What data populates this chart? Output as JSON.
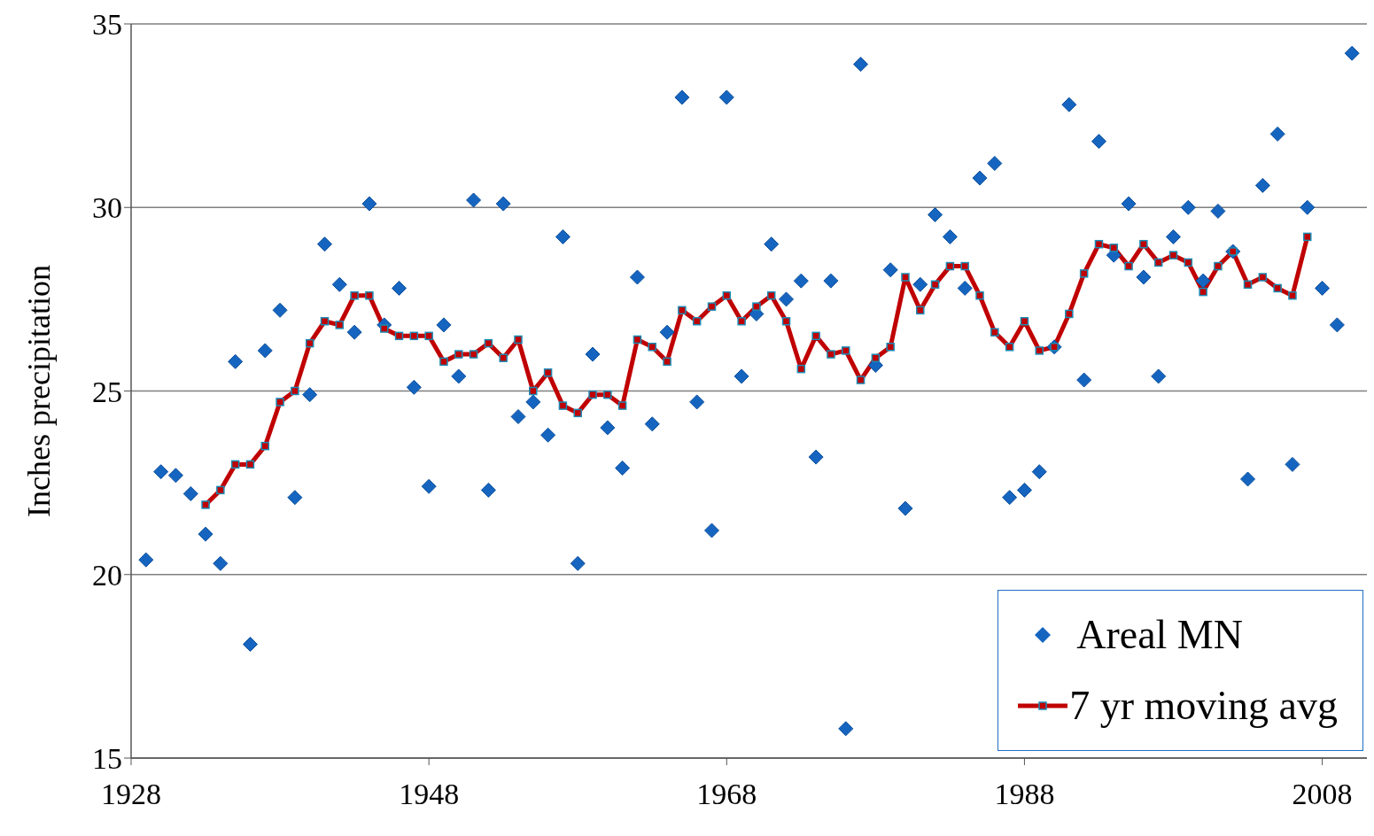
{
  "chart_data": {
    "type": "scatter",
    "ylabel": "Inches precipitation",
    "xlim": [
      1928,
      2011
    ],
    "xticks": [
      1928,
      1948,
      1968,
      1988,
      2008
    ],
    "ylim": [
      15,
      35
    ],
    "yticks": [
      15,
      20,
      25,
      30,
      35
    ],
    "grid": "y",
    "legend": "bottom right",
    "series": [
      {
        "name": "Areal MN",
        "marker": "diamond",
        "color": "#1565c0",
        "x": [
          1929,
          1930,
          1931,
          1932,
          1933,
          1934,
          1935,
          1936,
          1937,
          1938,
          1939,
          1940,
          1941,
          1942,
          1943,
          1944,
          1945,
          1946,
          1947,
          1948,
          1949,
          1950,
          1951,
          1952,
          1953,
          1954,
          1955,
          1956,
          1957,
          1958,
          1959,
          1960,
          1961,
          1962,
          1963,
          1964,
          1965,
          1966,
          1967,
          1968,
          1969,
          1970,
          1971,
          1972,
          1973,
          1974,
          1975,
          1976,
          1977,
          1978,
          1979,
          1980,
          1981,
          1982,
          1983,
          1984,
          1985,
          1986,
          1987,
          1988,
          1989,
          1990,
          1991,
          1992,
          1993,
          1994,
          1995,
          1996,
          1997,
          1998,
          1999,
          2000,
          2001,
          2002,
          2003,
          2004,
          2005,
          2006,
          2007,
          2008,
          2009,
          2010
        ],
        "values": [
          20.4,
          22.8,
          22.7,
          22.2,
          21.1,
          20.3,
          25.8,
          18.1,
          26.1,
          27.2,
          22.1,
          24.9,
          29.0,
          27.9,
          26.6,
          30.1,
          26.8,
          27.8,
          25.1,
          22.4,
          26.8,
          25.4,
          30.2,
          22.3,
          30.1,
          24.3,
          24.7,
          23.8,
          29.2,
          20.3,
          26.0,
          24.0,
          22.9,
          28.1,
          24.1,
          26.6,
          33.0,
          24.7,
          21.2,
          33.0,
          25.4,
          27.1,
          29.0,
          27.5,
          28.0,
          23.2,
          28.0,
          15.8,
          33.9,
          25.7,
          28.3,
          21.8,
          27.9,
          29.8,
          29.2,
          27.8,
          30.8,
          31.2,
          22.1,
          22.3,
          22.8,
          26.2,
          32.8,
          25.3,
          31.8,
          28.7,
          30.1,
          28.1,
          25.4,
          29.2,
          30.0,
          28.0,
          29.9,
          28.8,
          22.6,
          30.6,
          32.0,
          23.0,
          30.0,
          27.8,
          26.8,
          34.2
        ]
      },
      {
        "name": "7 yr moving avg",
        "type": "line",
        "marker": "square",
        "line_style": "solid",
        "color": "#c00000",
        "x": [
          1933,
          1934,
          1935,
          1936,
          1937,
          1938,
          1939,
          1940,
          1941,
          1942,
          1943,
          1944,
          1945,
          1946,
          1947,
          1948,
          1949,
          1950,
          1951,
          1952,
          1953,
          1954,
          1955,
          1956,
          1957,
          1958,
          1959,
          1960,
          1961,
          1962,
          1963,
          1964,
          1965,
          1966,
          1967,
          1968,
          1969,
          1970,
          1971,
          1972,
          1973,
          1974,
          1975,
          1976,
          1977,
          1978,
          1979,
          1980,
          1981,
          1982,
          1983,
          1984,
          1985,
          1986,
          1987,
          1988,
          1989,
          1990,
          1991,
          1992,
          1993,
          1994,
          1995,
          1996,
          1997,
          1998,
          1999,
          2000,
          2001,
          2002,
          2003,
          2004,
          2005,
          2006,
          2007
        ],
        "values": [
          21.9,
          22.3,
          23.0,
          23.0,
          23.5,
          24.7,
          25.0,
          26.3,
          26.9,
          26.8,
          27.6,
          27.6,
          26.7,
          26.5,
          26.5,
          26.5,
          25.8,
          26.0,
          26.0,
          26.3,
          25.9,
          26.4,
          25.0,
          25.5,
          24.6,
          24.4,
          24.9,
          24.9,
          24.6,
          26.4,
          26.2,
          25.8,
          27.2,
          26.9,
          27.3,
          27.6,
          26.9,
          27.3,
          27.6,
          26.9,
          25.6,
          26.5,
          26.0,
          26.1,
          25.3,
          25.9,
          26.2,
          28.1,
          27.2,
          27.9,
          28.4,
          28.4,
          27.6,
          26.6,
          26.2,
          26.9,
          26.1,
          26.2,
          27.1,
          28.2,
          29.0,
          28.9,
          28.4,
          29.0,
          28.5,
          28.7,
          28.5,
          27.7,
          28.4,
          28.8,
          27.9,
          28.1,
          27.8,
          27.6,
          29.2
        ]
      }
    ]
  }
}
